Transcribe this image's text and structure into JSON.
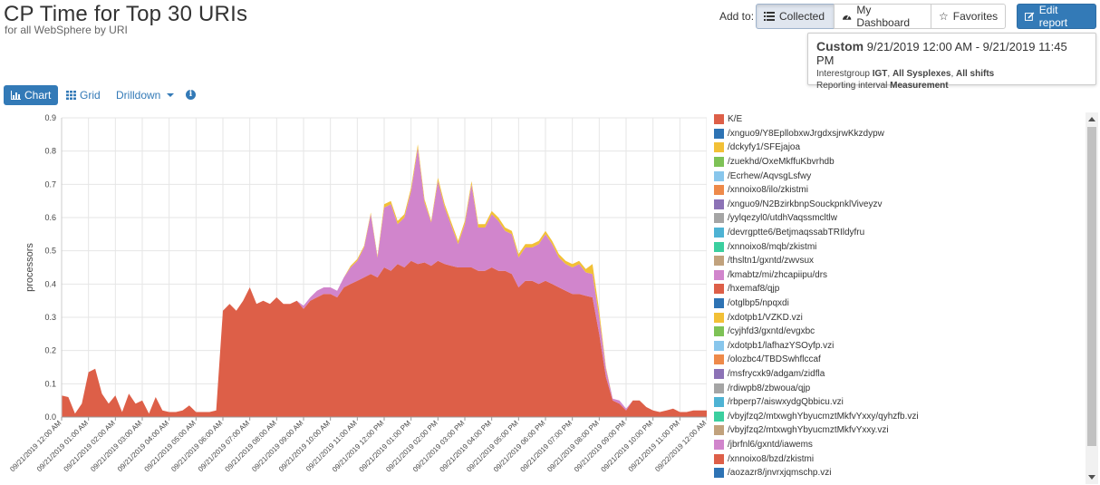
{
  "header": {
    "title": "CP Time for Top 30 URIs",
    "subtitle": "for all WebSphere by URI"
  },
  "toolbar": {
    "add_to_label": "Add to:",
    "collected_label": "Collected",
    "dashboard_label": "My Dashboard",
    "favorites_label": "Favorites",
    "edit_label": "Edit report"
  },
  "info": {
    "custom_label": "Custom",
    "date_range": "9/21/2019 12:00 AM - 9/21/2019 11:45 PM",
    "interestgroup_prefix": "Interestgroup",
    "interestgroup_value": "IGT",
    "sysplexes": "All Sysplexes",
    "shifts": "All shifts",
    "interval_prefix": "Reporting interval",
    "interval_value": "Measurement"
  },
  "view_tabs": {
    "chart_label": "Chart",
    "grid_label": "Grid",
    "drilldown_label": "Drilldown"
  },
  "colors": {
    "primary": "#337ab7",
    "ke": "#dd5f48",
    "pink": "#d185cc",
    "yellow": "#f2c036"
  },
  "chart_data": {
    "type": "area",
    "ylabel": "processors",
    "ylim": [
      0,
      0.9
    ],
    "yticks": [
      "0.0",
      "0.1",
      "0.2",
      "0.3",
      "0.4",
      "0.5",
      "0.6",
      "0.7",
      "0.8",
      "0.9"
    ],
    "grid": true,
    "xticks": [
      "09/21/2019 12:00 AM",
      "09/21/2019 01:00 AM",
      "09/21/2019 02:00 AM",
      "09/21/2019 03:00 AM",
      "09/21/2019 04:00 AM",
      "09/21/2019 05:00 AM",
      "09/21/2019 06:00 AM",
      "09/21/2019 07:00 AM",
      "09/21/2019 08:00 AM",
      "09/21/2019 09:00 AM",
      "09/21/2019 10:00 AM",
      "09/21/2019 11:00 AM",
      "09/21/2019 12:00 PM",
      "09/21/2019 01:00 PM",
      "09/21/2019 02:00 PM",
      "09/21/2019 03:00 PM",
      "09/21/2019 04:00 PM",
      "09/21/2019 05:00 PM",
      "09/21/2019 06:00 PM",
      "09/21/2019 07:00 PM",
      "09/21/2019 08:00 PM",
      "09/21/2019 09:00 PM",
      "09/21/2019 10:00 PM",
      "09/21/2019 11:00 PM",
      "09/22/2019 12:00 AM"
    ],
    "x_hours": [
      0,
      0.25,
      0.5,
      0.75,
      1,
      1.25,
      1.5,
      1.75,
      2,
      2.25,
      2.5,
      2.75,
      3,
      3.25,
      3.5,
      3.75,
      4,
      4.25,
      4.5,
      4.75,
      5,
      5.25,
      5.5,
      5.75,
      6,
      6.25,
      6.5,
      6.75,
      7,
      7.25,
      7.5,
      7.75,
      8,
      8.25,
      8.5,
      8.75,
      9,
      9.25,
      9.5,
      9.75,
      10,
      10.25,
      10.5,
      10.75,
      11,
      11.25,
      11.5,
      11.75,
      12,
      12.25,
      12.5,
      12.75,
      13,
      13.25,
      13.5,
      13.75,
      14,
      14.25,
      14.5,
      14.75,
      15,
      15.25,
      15.5,
      15.75,
      16,
      16.25,
      16.5,
      16.75,
      17,
      17.25,
      17.5,
      17.75,
      18,
      18.25,
      18.5,
      18.75,
      19,
      19.25,
      19.5,
      19.75,
      20,
      20.25,
      20.5,
      20.75,
      21,
      21.25,
      21.5,
      21.75,
      22,
      22.25,
      22.5,
      22.75,
      23,
      23.25,
      23.5,
      23.75
    ],
    "series": [
      {
        "name": "K/E",
        "color": "#dd5f48",
        "values": [
          0.065,
          0.06,
          0.01,
          0.04,
          0.135,
          0.145,
          0.07,
          0.04,
          0.065,
          0.015,
          0.07,
          0.04,
          0.05,
          0.01,
          0.06,
          0.02,
          0.015,
          0.015,
          0.02,
          0.035,
          0.015,
          0.015,
          0.015,
          0.02,
          0.32,
          0.34,
          0.32,
          0.35,
          0.39,
          0.34,
          0.35,
          0.34,
          0.36,
          0.34,
          0.34,
          0.35,
          0.325,
          0.35,
          0.36,
          0.37,
          0.37,
          0.36,
          0.39,
          0.4,
          0.41,
          0.42,
          0.43,
          0.42,
          0.45,
          0.44,
          0.46,
          0.45,
          0.47,
          0.46,
          0.465,
          0.455,
          0.47,
          0.46,
          0.455,
          0.45,
          0.45,
          0.45,
          0.44,
          0.44,
          0.45,
          0.44,
          0.44,
          0.43,
          0.39,
          0.41,
          0.41,
          0.4,
          0.41,
          0.4,
          0.39,
          0.38,
          0.37,
          0.37,
          0.365,
          0.36,
          0.25,
          0.12,
          0.05,
          0.04,
          0.02,
          0.05,
          0.05,
          0.03,
          0.02,
          0.015,
          0.02,
          0.025,
          0.015,
          0.015,
          0.02,
          0.02
        ]
      },
      {
        "name": "/kmabtz/mi/zhcapiipu/drs",
        "color": "#d185cc",
        "values": [
          0,
          0,
          0,
          0,
          0,
          0,
          0,
          0,
          0,
          0,
          0,
          0,
          0,
          0,
          0,
          0,
          0,
          0,
          0,
          0,
          0,
          0,
          0,
          0,
          0,
          0,
          0,
          0,
          0,
          0,
          0,
          0,
          0,
          0,
          0,
          0,
          0.01,
          0.01,
          0.02,
          0.02,
          0.02,
          0.02,
          0.03,
          0.05,
          0.06,
          0.09,
          0.18,
          0.06,
          0.18,
          0.2,
          0.12,
          0.15,
          0.21,
          0.35,
          0.18,
          0.13,
          0.24,
          0.17,
          0.12,
          0.07,
          0.13,
          0.25,
          0.13,
          0.13,
          0.16,
          0.15,
          0.12,
          0.12,
          0.09,
          0.1,
          0.1,
          0.12,
          0.14,
          0.12,
          0.09,
          0.08,
          0.08,
          0.09,
          0.07,
          0.07,
          0.05,
          0.025,
          0.005,
          0.01,
          0.005,
          0,
          0,
          0,
          0,
          0,
          0,
          0,
          0,
          0,
          0,
          0
        ]
      },
      {
        "name": "/dckyfy1/SFEjajoa",
        "color": "#f2c036",
        "values": [
          0,
          0,
          0,
          0,
          0,
          0,
          0,
          0,
          0,
          0,
          0,
          0,
          0,
          0,
          0,
          0,
          0,
          0,
          0,
          0,
          0,
          0,
          0,
          0,
          0,
          0,
          0,
          0,
          0,
          0,
          0,
          0,
          0,
          0,
          0,
          0,
          0,
          0,
          0,
          0,
          0,
          0,
          0,
          0.005,
          0.005,
          0.005,
          0.005,
          0.005,
          0.01,
          0.01,
          0.01,
          0.01,
          0.01,
          0.01,
          0.01,
          0.005,
          0.01,
          0.01,
          0.01,
          0.01,
          0.01,
          0.01,
          0.01,
          0.01,
          0.01,
          0.01,
          0.01,
          0.01,
          0.01,
          0.01,
          0.01,
          0.01,
          0.01,
          0.01,
          0.01,
          0.01,
          0.01,
          0.01,
          0.01,
          0.03,
          0.02,
          0.005,
          0,
          0,
          0,
          0,
          0,
          0,
          0,
          0,
          0,
          0,
          0,
          0,
          0,
          0
        ]
      }
    ],
    "legend_position": "right"
  },
  "legend": [
    {
      "label": "K/E",
      "color": "#dd5f48"
    },
    {
      "label": "/xnguo9/Y8EpllobxwJrgdxsjrwKkzdypw",
      "color": "#2e73b4"
    },
    {
      "label": "/dckyfy1/SFEjajoa",
      "color": "#f2c036"
    },
    {
      "label": "/zuekhd/OxeMkffuKbvrhdb",
      "color": "#7ec256"
    },
    {
      "label": "/Ecrhew/AqvsgLsfwy",
      "color": "#88c6ec"
    },
    {
      "label": "/xnnoixo8/ilo/zkistmi",
      "color": "#ee8a4a"
    },
    {
      "label": "/xnguo9/N2BzirkbnpSouckpnklViveyzv",
      "color": "#8c72b6"
    },
    {
      "label": "/yylqezyl0/utdhVaqssmcltlw",
      "color": "#a5a5a5"
    },
    {
      "label": "/devrgptte6/BetjmaqssabTRIldyfru",
      "color": "#4eb3d4"
    },
    {
      "label": "/xnnoixo8/mqb/zkistmi",
      "color": "#3bcf9f"
    },
    {
      "label": "/thsltn1/gxntd/zwvsux",
      "color": "#c1a27d"
    },
    {
      "label": "/kmabtz/mi/zhcapiipu/drs",
      "color": "#d185cc"
    },
    {
      "label": "/hxemaf8/qjp",
      "color": "#dd5f48"
    },
    {
      "label": "/otglbp5/npqxdi",
      "color": "#2e73b4"
    },
    {
      "label": "/xdotpb1/VZKD.vzi",
      "color": "#f2c036"
    },
    {
      "label": "/cyjhfd3/gxntd/evgxbc",
      "color": "#7ec256"
    },
    {
      "label": "/xdotpb1/lafhazYSOyfp.vzi",
      "color": "#88c6ec"
    },
    {
      "label": "/olozbc4/TBDSwhflccaf",
      "color": "#ee8a4a"
    },
    {
      "label": "/msfrycxk9/adgam/zidfla",
      "color": "#8c72b6"
    },
    {
      "label": "/rdiwpb8/zbwoua/qjp",
      "color": "#a5a5a5"
    },
    {
      "label": "/rbperp7/aiswxydgQbbicu.vzi",
      "color": "#4eb3d4"
    },
    {
      "label": "/vbyjfzq2/mtxwghYbyucmztMkfvYxxy/qyhzfb.vzi",
      "color": "#3bcf9f"
    },
    {
      "label": "/vbyjfzq2/mtxwghYbyucmztMkfvYxxy.vzi",
      "color": "#c1a27d"
    },
    {
      "label": "/jbrfnl6/gxntd/iawems",
      "color": "#d185cc"
    },
    {
      "label": "/xnnoixo8/bzd/zkistmi",
      "color": "#dd5f48"
    },
    {
      "label": "/aozazr8/jnvrxjqmschp.vzi",
      "color": "#2e73b4"
    }
  ]
}
